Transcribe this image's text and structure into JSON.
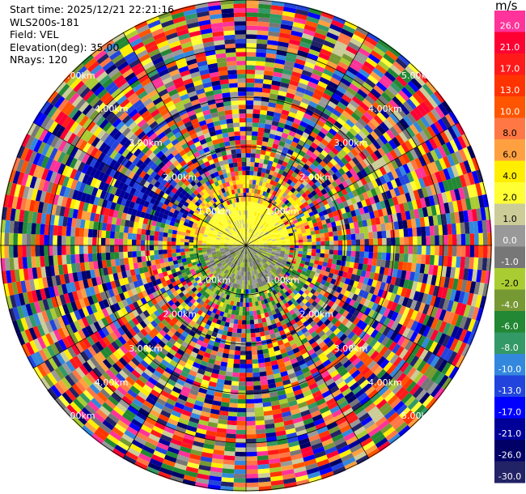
{
  "info": {
    "start_time": "Start time: 2025/12/21 22:21:16",
    "station": "WLS200s-181",
    "field": "Field: VEL",
    "elevation": "Elevation(deg): 35.00",
    "nrays": "NRays: 120"
  },
  "range_rings": {
    "labels": [
      "1.00km",
      "2.00km",
      "3.00km",
      "4.00km",
      "5.00km"
    ]
  },
  "colorbar": {
    "unit": "m/s",
    "labels": [
      "26.0",
      "21.0",
      "17.0",
      "13.0",
      "10.0",
      "8.0",
      "6.0",
      "4.0",
      "2.0",
      "1.0",
      "0.0",
      "-1.0",
      "-2.0",
      "-4.0",
      "-6.0",
      "-8.0",
      "-10.0",
      "-13.0",
      "-17.0",
      "-21.0",
      "-26.0",
      "-30.0"
    ],
    "colors": [
      "#ff3399",
      "#ff0033",
      "#ff1a1a",
      "#ff3300",
      "#ff5500",
      "#ff7744",
      "#ffa040",
      "#ffee00",
      "#ffff33",
      "#cccc99",
      "#999999",
      "#777777",
      "#aacc33",
      "#779933",
      "#228833",
      "#339966",
      "#3388dd",
      "#2244dd",
      "#0000ff",
      "#000099",
      "#000066",
      "#222266"
    ]
  }
}
